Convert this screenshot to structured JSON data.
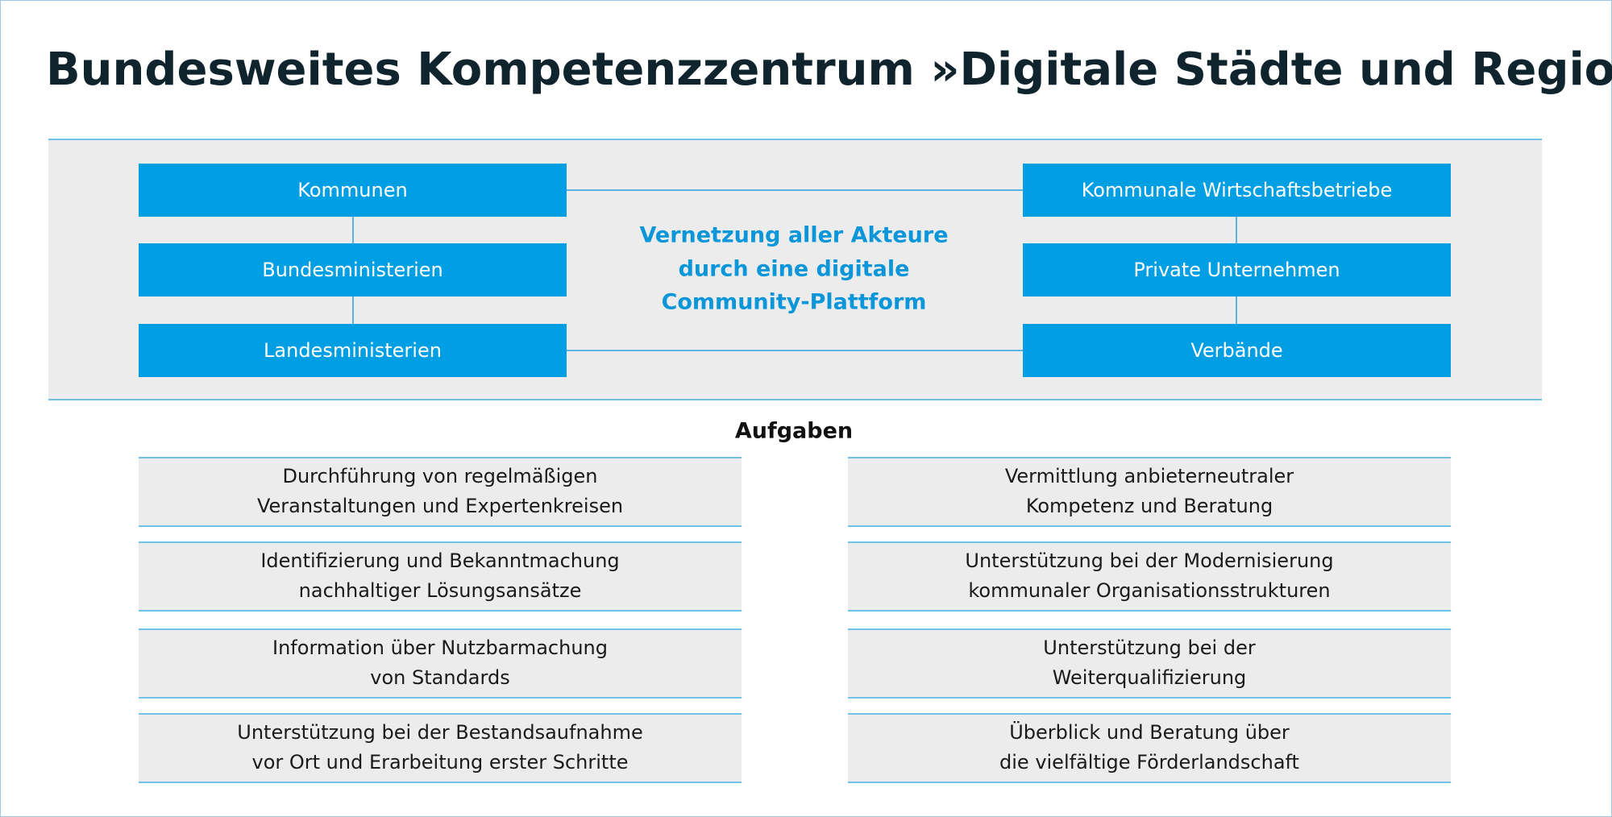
{
  "title": "Bundesweites Kompetenzzentrum »Digitale Städte und Regionen«",
  "actors_left": [
    "Kommunen",
    "Bundesministerien",
    "Landesministerien"
  ],
  "actors_right": [
    "Kommunale Wirtschaftsbetriebe",
    "Private Unternehmen",
    "Verbände"
  ],
  "center_text": [
    "Vernetzung aller Akteure",
    "durch eine digitale",
    "Community-Plattform"
  ],
  "tasks_heading": "Aufgaben",
  "tasks_left": [
    [
      "Durchführung von regelmäßigen",
      "Veranstaltungen und Expertenkreisen"
    ],
    [
      "Identifizierung und Bekanntmachung",
      "nachhaltiger Lösungsansätze"
    ],
    [
      "Information über Nutzbarmachung",
      "von Standards"
    ],
    [
      "Unterstützung bei der Bestandsaufnahme",
      "vor Ort und Erarbeitung erster Schritte"
    ]
  ],
  "tasks_right": [
    [
      "Vermittlung anbieterneutraler",
      "Kompetenz und Beratung"
    ],
    [
      "Unterstützung bei der Modernisierung",
      "kommunaler Organisationsstrukturen"
    ],
    [
      "Unterstützung bei der",
      "Weiterqualifizierung"
    ],
    [
      "Überblick und Beratung über",
      "die vielfältige Förderlandschaft"
    ]
  ]
}
